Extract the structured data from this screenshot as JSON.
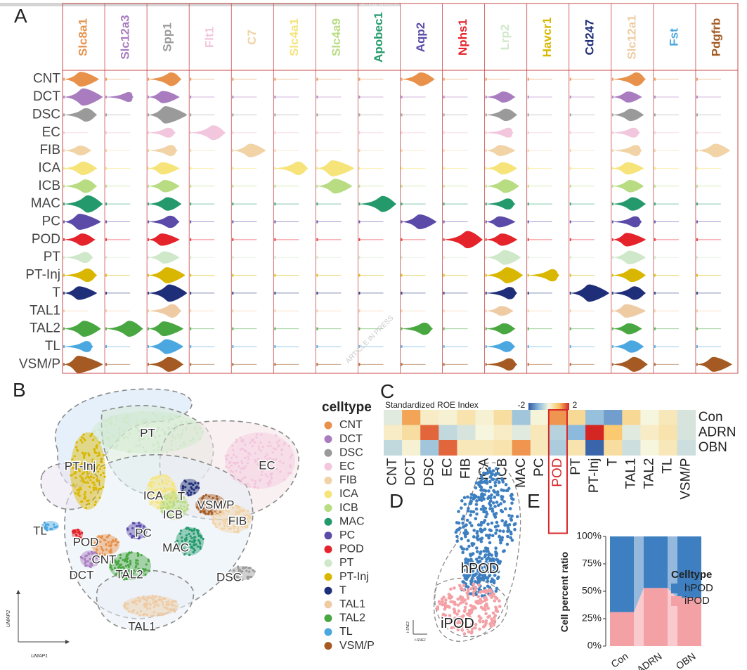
{
  "watermark": "ARTICLE IN PRESS",
  "panels": {
    "a": "A",
    "b": "B",
    "c": "C",
    "d": "D",
    "e": "E"
  },
  "palette": {
    "CNT": "#e8914a",
    "DCT": "#a97cbf",
    "DSC": "#9a9a9a",
    "EC": "#f2c6dc",
    "FIB": "#f1d3a6",
    "ICA": "#f6e47a",
    "ICB": "#b7dc82",
    "MAC": "#249a6c",
    "PC": "#5b4aa8",
    "POD": "#e4232b",
    "PT": "#cfe8c9",
    "PT-Inj": "#d9b700",
    "T": "#1f2e78",
    "TAL1": "#efcba3",
    "TAL2": "#49a742",
    "TL": "#4aa7e0",
    "VSM/P": "#a45a22"
  },
  "chart_data": [
    {
      "id": "A",
      "type": "violin",
      "genes": [
        "Slc8a1",
        "Slc12a3",
        "Spp1",
        "Flt1",
        "C7",
        "Slc4a1",
        "Slc4a9",
        "Apobec1",
        "Aqp2",
        "Nphs1",
        "Lrp2",
        "Havcr1",
        "Cd247",
        "Slc12a1",
        "Fst",
        "Pdgfrb"
      ],
      "gene_colors": [
        "#e8914a",
        "#a97cbf",
        "#9a9a9a",
        "#f2c6dc",
        "#f1d3a6",
        "#f6e47a",
        "#b7dc82",
        "#249a6c",
        "#5b4aa8",
        "#e4232b",
        "#cfe8c9",
        "#d9b700",
        "#1f2e78",
        "#efcba3",
        "#4aa7e0",
        "#a45a22"
      ],
      "celltypes": [
        "CNT",
        "DCT",
        "DSC",
        "EC",
        "FIB",
        "ICA",
        "ICB",
        "MAC",
        "PC",
        "POD",
        "PT",
        "PT-Inj",
        "T",
        "TAL1",
        "TAL2",
        "TL",
        "VSM/P"
      ],
      "expression": [
        [
          0.8,
          0,
          0.7,
          0,
          0,
          0,
          0,
          0,
          0.7,
          0,
          0,
          0,
          0,
          0.7,
          0,
          0
        ],
        [
          1,
          0.4,
          0.6,
          0,
          0,
          0,
          0,
          0,
          0,
          0,
          0.5,
          0,
          0,
          0.5,
          0,
          0
        ],
        [
          0.7,
          0,
          1,
          0,
          0,
          0,
          0,
          0,
          0,
          0,
          0.6,
          0,
          0,
          0.6,
          0,
          0
        ],
        [
          0,
          0,
          0.4,
          0.8,
          0,
          0,
          0,
          0,
          0,
          0,
          0.4,
          0,
          0,
          0.4,
          0,
          0
        ],
        [
          0.4,
          0,
          0.5,
          0,
          0.7,
          0,
          0,
          0,
          0,
          0,
          0.5,
          0,
          0,
          0.5,
          0,
          0.7
        ],
        [
          0.7,
          0,
          0.6,
          0,
          0,
          0.7,
          0.9,
          0,
          0,
          0,
          0.6,
          0,
          0,
          0.6,
          0,
          0
        ],
        [
          0.7,
          0,
          0.6,
          0,
          0,
          0,
          0.8,
          0,
          0,
          0,
          0.7,
          0,
          0,
          0.6,
          0,
          0
        ],
        [
          1,
          0,
          0.7,
          0,
          0,
          0,
          0,
          0.9,
          0,
          0,
          0.5,
          0,
          0,
          0.7,
          0,
          0
        ],
        [
          0.9,
          0,
          0.6,
          0,
          0,
          0,
          0,
          0,
          0.8,
          0,
          0.5,
          0,
          0,
          0.5,
          0,
          0
        ],
        [
          0.6,
          0,
          0.6,
          0,
          0,
          0,
          0,
          0,
          0,
          1,
          0.6,
          0,
          0,
          0.7,
          0,
          0
        ],
        [
          0.5,
          0,
          0.6,
          0,
          0,
          0,
          0,
          0,
          0,
          0,
          0.8,
          0,
          0,
          0.7,
          0,
          0
        ],
        [
          0.7,
          0,
          0.9,
          0,
          0,
          0,
          0,
          0,
          0,
          0,
          0.9,
          0.6,
          0,
          0.7,
          0,
          0
        ],
        [
          0.7,
          0,
          1,
          0,
          0,
          0,
          0,
          0,
          0,
          0,
          0.6,
          0,
          1,
          0.7,
          0,
          0
        ],
        [
          0,
          0,
          0.7,
          0,
          0,
          0,
          0,
          0,
          0,
          0,
          0.4,
          0,
          0,
          0.7,
          0,
          0
        ],
        [
          0.9,
          0.9,
          0.8,
          0,
          0,
          0,
          0,
          0,
          0.6,
          0,
          0.5,
          0,
          0,
          0.5,
          0,
          0
        ],
        [
          0.5,
          0,
          0.8,
          0,
          0,
          0,
          0,
          0,
          0,
          0,
          0.5,
          0,
          0,
          0.6,
          0,
          0
        ],
        [
          1,
          0,
          0.8,
          0,
          0,
          0,
          0,
          0,
          0,
          0,
          0.6,
          0,
          0,
          0.8,
          0,
          0.8
        ]
      ]
    },
    {
      "id": "B",
      "type": "scatter",
      "xlabel": "UMAP1",
      "ylabel": "UMAP2",
      "legend_title": "celltype",
      "legend_position": "right",
      "cluster_labels": [
        "PT",
        "PT-Inj",
        "EC",
        "ICA",
        "ICB",
        "T",
        "VSM/P",
        "FIB",
        "TL",
        "POD",
        "PC",
        "MAC",
        "CNT",
        "DCT",
        "TAL2",
        "DSC",
        "TAL1"
      ],
      "legend": [
        "CNT",
        "DCT",
        "DSC",
        "EC",
        "FIB",
        "ICA",
        "ICB",
        "MAC",
        "PC",
        "POD",
        "PT",
        "PT-Inj",
        "T",
        "TAL1",
        "TAL2",
        "TL",
        "VSM/P"
      ]
    },
    {
      "id": "C",
      "type": "heatmap",
      "title": "Standardized ROE Index",
      "scale_min": -2,
      "scale_max": 2,
      "scale_min_label": "-2",
      "scale_max_label": "2",
      "columns": [
        "CNT",
        "DCT",
        "DSC",
        "EC",
        "FIB",
        "ICA",
        "ICB",
        "MAC",
        "PC",
        "POD",
        "PT",
        "PT-Inj",
        "T",
        "TAL1",
        "TAL2",
        "TL",
        "VSM/P"
      ],
      "highlight_column": "POD",
      "rows": [
        "Con",
        "ADRN",
        "OBN"
      ],
      "values": [
        [
          -0.2,
          1.2,
          0.2,
          0.1,
          0.4,
          0.1,
          0.5,
          -0.8,
          0.05,
          1.3,
          0.6,
          -0.9,
          -1.3,
          0.6,
          0.0,
          0.3,
          -0.3
        ],
        [
          0.2,
          0.5,
          1.6,
          -0.5,
          -0.3,
          0.0,
          0.2,
          -0.2,
          0.3,
          -0.6,
          -1.0,
          2.0,
          0.9,
          -0.2,
          0.2,
          0.4,
          -0.3
        ],
        [
          -0.5,
          0.1,
          -0.8,
          1.6,
          0.3,
          0.3,
          0.4,
          1.3,
          0.3,
          -0.7,
          0.4,
          -1.9,
          0.5,
          -0.4,
          0.0,
          0.3,
          -0.4
        ]
      ]
    },
    {
      "id": "D",
      "type": "scatter",
      "xlabel": "t-SNE1",
      "ylabel": "t-SNE2",
      "clusters": [
        "hPOD",
        "iPOD"
      ]
    },
    {
      "id": "E",
      "type": "bar",
      "stacked": true,
      "ylabel": "Cell percent ratio",
      "categories": [
        "Con",
        "ADRN",
        "OBN"
      ],
      "yticks": [
        "0%",
        "25%",
        "50%",
        "75%",
        "100%"
      ],
      "ylim": [
        0,
        1
      ],
      "legend_title": "Celltype",
      "series": [
        {
          "name": "hPOD",
          "color": "#3d7fc0",
          "values": [
            0.69,
            0.47,
            0.56
          ]
        },
        {
          "name": "iPOD",
          "color": "#f4a1a6",
          "values": [
            0.31,
            0.53,
            0.44
          ]
        }
      ]
    }
  ]
}
